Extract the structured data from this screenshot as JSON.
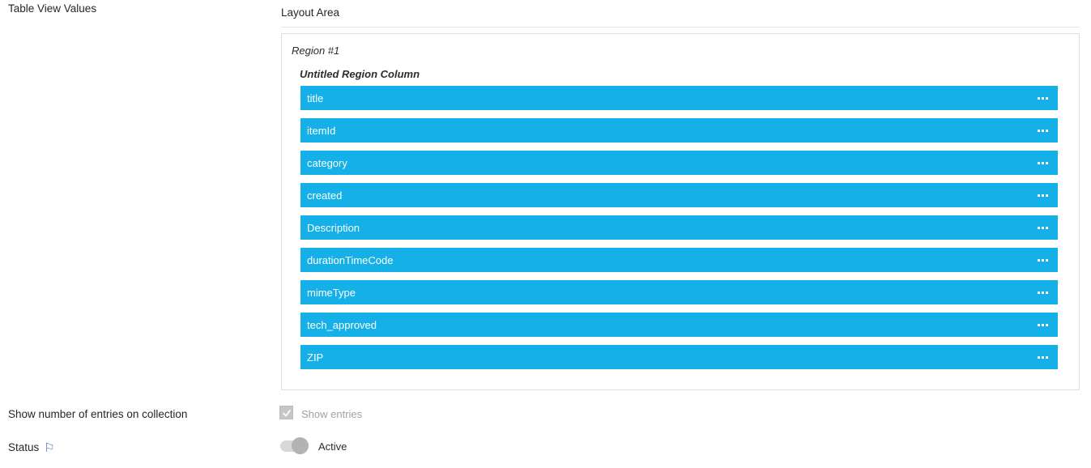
{
  "labels": {
    "table_view_values": "Table View Values",
    "show_number_entries": "Show number of entries on collection",
    "status": "Status"
  },
  "layout_area": {
    "title": "Layout Area",
    "region": {
      "title": "Region #1",
      "column_title": "Untitled Region Column",
      "fields": [
        "title",
        "itemId",
        "category",
        "created",
        "Description",
        "durationTimeCode",
        "mimeType",
        "tech_approved",
        "ZIP"
      ]
    }
  },
  "controls": {
    "show_entries": {
      "label": "Show entries",
      "checked": true
    },
    "status_toggle": {
      "label": "Active",
      "on": true
    }
  },
  "icons": {
    "status_flag": "⚐"
  },
  "colors": {
    "field_bar": "#14b0e7",
    "field_bar_text": "#ffffff",
    "flag_icon": "#3b74bd",
    "region_border": "#dddddd",
    "disabled_text": "#a2a2a2"
  }
}
